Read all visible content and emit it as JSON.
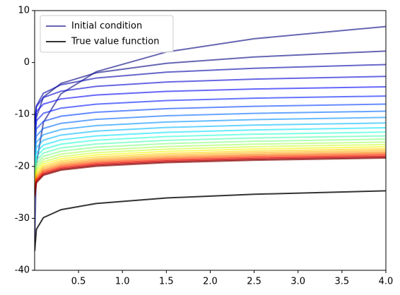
{
  "chart_data": {
    "type": "line",
    "x": [
      0.001,
      0.02,
      0.1,
      0.3,
      0.7,
      1.5,
      2.5,
      4
    ],
    "xlim": [
      0,
      4
    ],
    "xticks": [
      0.5,
      {
        "value": 1,
        "label": "1.0"
      },
      1.5,
      {
        "value": 2,
        "label": "2.0"
      },
      2.5,
      {
        "value": 3,
        "label": "3.0"
      },
      3.5,
      {
        "value": 4,
        "label": "4.0"
      }
    ],
    "ylim": [
      -40,
      10
    ],
    "yticks": [
      -40,
      -30,
      -20,
      -10,
      0,
      10
    ],
    "grid": false,
    "legend": "upper left",
    "alpha": 0.6,
    "series": [
      {
        "name": "Initial condition",
        "color": "#00007f",
        "values": [
          -34.54,
          -19.56,
          -11.51,
          -6.02,
          -1.78,
          2.03,
          4.58,
          6.93
        ]
      },
      {
        "color": "#000080",
        "values": [
          -17.71,
          -10.52,
          -6.65,
          -4.02,
          -1.98,
          -0.15,
          1.07,
          2.2
        ]
      },
      {
        "color": "#0000a8",
        "values": [
          -12.83,
          -8.34,
          -5.92,
          -4.28,
          -3.0,
          -1.86,
          -1.1,
          -0.39
        ]
      },
      {
        "color": "#0000d0",
        "values": [
          -11.79,
          -8.5,
          -6.73,
          -5.52,
          -4.59,
          -3.75,
          -3.19,
          -2.67
        ]
      },
      {
        "color": "#0000f8",
        "values": [
          -12.14,
          -9.45,
          -8.0,
          -7.01,
          -6.25,
          -5.56,
          -5.1,
          -4.68
        ]
      },
      {
        "color": "#0018ff",
        "values": [
          -13.91,
          -11.22,
          -9.77,
          -8.78,
          -8.02,
          -7.33,
          -6.87,
          -6.45
        ]
      },
      {
        "color": "#0040ff",
        "values": [
          -15.46,
          -12.77,
          -11.32,
          -10.33,
          -9.57,
          -8.88,
          -8.42,
          -8.0
        ]
      },
      {
        "color": "#0068ff",
        "values": [
          -16.83,
          -14.14,
          -12.69,
          -11.7,
          -10.94,
          -10.25,
          -9.79,
          -9.37
        ]
      },
      {
        "color": "#0090ff",
        "values": [
          -18.03,
          -15.34,
          -13.89,
          -12.9,
          -12.14,
          -11.45,
          -10.99,
          -10.57
        ]
      },
      {
        "color": "#00b8ff",
        "values": [
          -19.09,
          -16.4,
          -14.95,
          -13.96,
          -13.2,
          -12.51,
          -12.05,
          -11.63
        ]
      },
      {
        "color": "#00e0fb",
        "values": [
          -20.02,
          -17.33,
          -15.88,
          -14.89,
          -14.13,
          -13.44,
          -12.98,
          -12.56
        ]
      },
      {
        "color": "#22ffd4",
        "values": [
          -20.84,
          -18.15,
          -16.7,
          -15.71,
          -14.95,
          -14.26,
          -13.8,
          -13.38
        ]
      },
      {
        "color": "#4affad",
        "values": [
          -21.57,
          -18.88,
          -17.43,
          -16.44,
          -15.68,
          -14.99,
          -14.53,
          -14.11
        ]
      },
      {
        "color": "#7dff7a",
        "values": [
          -22.2,
          -19.51,
          -18.06,
          -17.07,
          -16.31,
          -15.62,
          -15.16,
          -14.74
        ]
      },
      {
        "color": "#a4ff53",
        "values": [
          -22.76,
          -20.07,
          -18.62,
          -17.63,
          -16.87,
          -16.18,
          -15.72,
          -15.3
        ]
      },
      {
        "color": "#cbff2c",
        "values": [
          -23.25,
          -20.56,
          -19.11,
          -18.12,
          -17.36,
          -16.67,
          -16.21,
          -15.79
        ]
      },
      {
        "color": "#f4f802",
        "values": [
          -23.68,
          -20.99,
          -19.54,
          -18.55,
          -17.79,
          -17.1,
          -16.64,
          -16.22
        ]
      },
      {
        "color": "#ffd200",
        "values": [
          -24.07,
          -21.38,
          -19.93,
          -18.94,
          -18.18,
          -17.49,
          -17.03,
          -16.61
        ]
      },
      {
        "color": "#ffab00",
        "values": [
          -24.4,
          -21.71,
          -20.26,
          -19.27,
          -18.51,
          -17.82,
          -17.36,
          -16.94
        ]
      },
      {
        "color": "#ff8400",
        "values": [
          -24.7,
          -22.01,
          -20.56,
          -19.57,
          -18.81,
          -18.12,
          -17.66,
          -17.24
        ]
      },
      {
        "color": "#ff5d00",
        "values": [
          -24.96,
          -22.27,
          -20.82,
          -19.83,
          -19.07,
          -18.38,
          -17.92,
          -17.5
        ]
      },
      {
        "color": "#ff3600",
        "values": [
          -25.18,
          -22.49,
          -21.04,
          -20.05,
          -19.29,
          -18.6,
          -18.14,
          -17.72
        ]
      },
      {
        "color": "#f40f00",
        "values": [
          -25.38,
          -22.69,
          -21.24,
          -20.25,
          -19.49,
          -18.8,
          -18.34,
          -17.92
        ]
      },
      {
        "color": "#cc0000",
        "values": [
          -25.56,
          -22.87,
          -21.42,
          -20.43,
          -19.67,
          -18.98,
          -18.52,
          -18.1
        ]
      },
      {
        "color": "#a40000",
        "values": [
          -25.72,
          -23.03,
          -21.58,
          -20.59,
          -19.83,
          -19.14,
          -18.68,
          -18.26
        ]
      },
      {
        "color": "#800000",
        "values": [
          -25.86,
          -23.17,
          -21.72,
          -20.73,
          -19.97,
          -19.28,
          -18.82,
          -18.4
        ]
      },
      {
        "name": "True value function",
        "color": "#000000",
        "alpha": 0.8,
        "values": [
          -36.31,
          -32.12,
          -29.86,
          -28.33,
          -27.14,
          -26.07,
          -25.36,
          -24.7
        ]
      }
    ]
  }
}
